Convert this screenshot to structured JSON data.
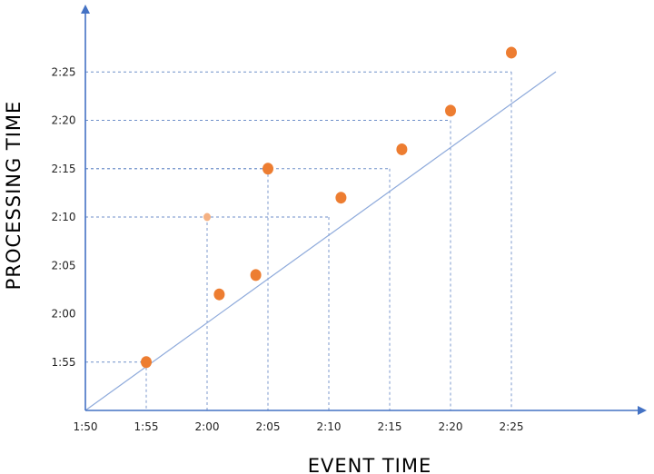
{
  "chart_data": {
    "type": "scatter",
    "xlabel": "EVENT TIME",
    "ylabel": "PROCESSING TIME",
    "x_ticks": [
      "1:50",
      "1:55",
      "2:00",
      "2:05",
      "2:10",
      "2:15",
      "2:20",
      "2:25"
    ],
    "y_ticks": [
      "1:55",
      "2:00",
      "2:05",
      "2:10",
      "2:15",
      "2:20",
      "2:25"
    ],
    "xlim": [
      "1:50",
      "2:27"
    ],
    "ylim": [
      "1:50",
      "2:30"
    ],
    "reference_line": {
      "from": [
        "1:50",
        "1:50"
      ],
      "to": [
        "2:26",
        "2:26"
      ],
      "label": ""
    },
    "points": [
      {
        "x": "1:55",
        "y": "1:55",
        "style": "solid"
      },
      {
        "x": "2:00",
        "y": "2:10",
        "style": "faded"
      },
      {
        "x": "2:01",
        "y": "2:02",
        "style": "solid"
      },
      {
        "x": "2:04",
        "y": "2:04",
        "style": "solid"
      },
      {
        "x": "2:05",
        "y": "2:15",
        "style": "solid"
      },
      {
        "x": "2:11",
        "y": "2:12",
        "style": "solid"
      },
      {
        "x": "2:16",
        "y": "2:17",
        "style": "solid"
      },
      {
        "x": "2:20",
        "y": "2:21",
        "style": "solid"
      },
      {
        "x": "2:25",
        "y": "2:27",
        "style": "solid"
      }
    ],
    "guide_lines": [
      {
        "x": "1:55",
        "y": "1:55"
      },
      {
        "x": "2:00",
        "y": "2:10"
      },
      {
        "x": "2:05",
        "y": "2:15"
      },
      {
        "x": "2:10",
        "y": "2:10"
      },
      {
        "x": "2:15",
        "y": "2:15"
      },
      {
        "x": "2:20",
        "y": "2:20"
      },
      {
        "x": "2:25",
        "y": "2:25"
      }
    ],
    "grid": false,
    "legend": "none",
    "colors": {
      "axis": "#4472c4",
      "reference_line": "#8eaadb",
      "guide": "#6f8fc9",
      "point": "#ed7d31",
      "point_faded": "#f4b183"
    }
  }
}
